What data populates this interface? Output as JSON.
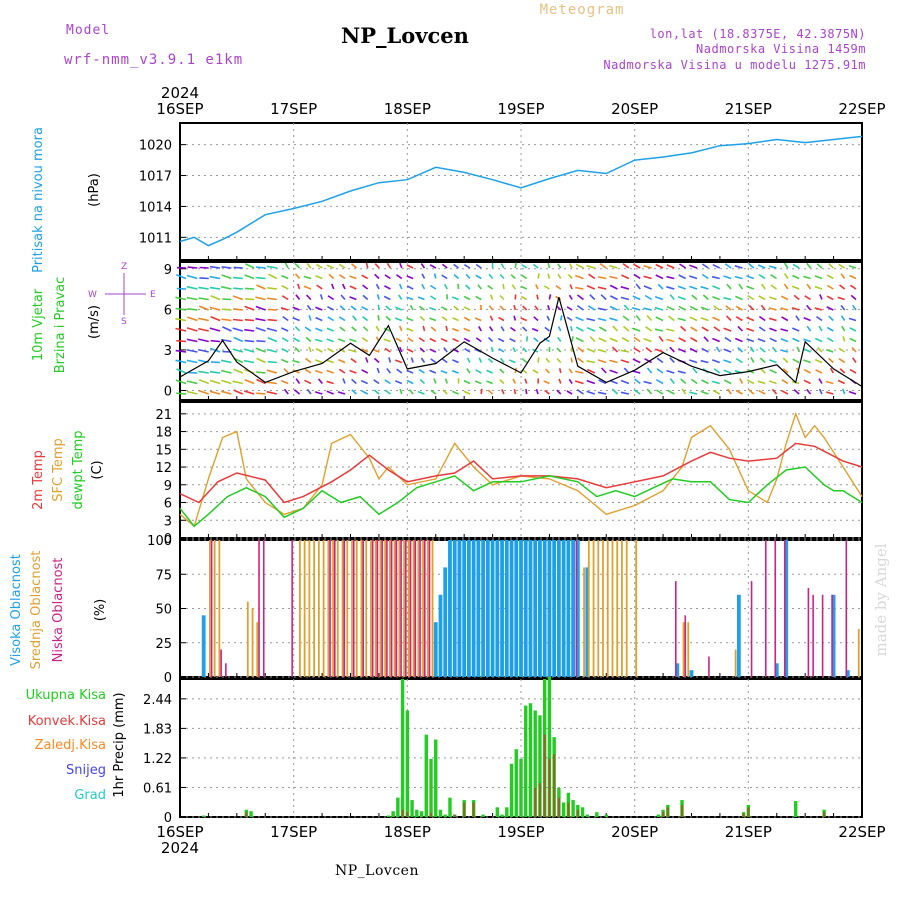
{
  "header": {
    "model_label": "Model",
    "model_name": "wrf-nmm_v3.9.1 e1km",
    "title": "NP_Lovcen",
    "meteogram": "Meteogram",
    "lonlat": "lon,lat (18.8375E, 42.3875N)",
    "elevation": "Nadmorska Visina 1459m",
    "model_elevation": "Nadmorska Visina u modelu 1275.91m",
    "footer": "NP_Lovcen",
    "credit": "made by Angel"
  },
  "time_axis": {
    "year": "2024",
    "days": [
      "16SEP",
      "17SEP",
      "18SEP",
      "19SEP",
      "20SEP",
      "21SEP",
      "22SEP"
    ]
  },
  "colors": {
    "pressure": "#1ea0e8",
    "temp2m": "#e83a3a",
    "sfc": "#e0a030",
    "dewpt": "#22cc22",
    "high_cloud": "#1ea0e8",
    "mid_cloud": "#e0a030",
    "low_cloud": "#cc2288",
    "total_precip": "#22cc22",
    "conv_precip": "#e83a3a",
    "ice_precip": "#ff8822",
    "snow": "#4444ee",
    "grad": "#22cccc",
    "purple": "#aa44cc"
  },
  "chart_data": [
    {
      "type": "line",
      "panel": "pressure",
      "ylabel": [
        "Pritisak na nivou mora",
        "(hPa)"
      ],
      "yticks": [
        1011,
        1014,
        1017,
        1020
      ],
      "ylim": [
        1008.8,
        1022.1
      ],
      "xlim": [
        0,
        144
      ],
      "grid": true,
      "series": [
        {
          "x": [
            0,
            3,
            6,
            9,
            12,
            18,
            24,
            30,
            36,
            42,
            48,
            54,
            60,
            66,
            72,
            78,
            84,
            90,
            96,
            102,
            108,
            114,
            120,
            126,
            132,
            138,
            144
          ],
          "y": [
            1010.6,
            1011.0,
            1010.2,
            1010.8,
            1011.5,
            1013.2,
            1013.8,
            1014.5,
            1015.5,
            1016.3,
            1016.6,
            1017.8,
            1017.3,
            1016.6,
            1015.8,
            1016.7,
            1017.5,
            1017.2,
            1018.5,
            1018.8,
            1019.2,
            1019.9,
            1020.1,
            1020.5,
            1020.2,
            1020.5,
            1020.8
          ]
        }
      ]
    },
    {
      "type": "line",
      "panel": "wind",
      "ylabel": [
        "10m Vjetar",
        "Brzina i Pravac",
        "(m/s)"
      ],
      "direction_key": [
        "Z",
        "W",
        "E",
        "S"
      ],
      "yticks": [
        0,
        3,
        6,
        9
      ],
      "ylim": [
        -0.7,
        9.5
      ],
      "xlim": [
        0,
        144
      ],
      "grid": true,
      "series": [
        {
          "name": "speed",
          "x": [
            0,
            6,
            9,
            12,
            18,
            24,
            30,
            36,
            40,
            44,
            48,
            54,
            60,
            66,
            72,
            76,
            78,
            80,
            84,
            90,
            96,
            102,
            108,
            114,
            120,
            126,
            130,
            132,
            138,
            144
          ],
          "y": [
            1.0,
            2.2,
            3.7,
            2.1,
            0.6,
            1.4,
            2.0,
            3.5,
            2.6,
            4.8,
            1.6,
            2.0,
            3.6,
            2.4,
            1.3,
            3.5,
            4.0,
            6.9,
            1.8,
            0.6,
            1.5,
            2.8,
            1.8,
            1.1,
            1.4,
            1.9,
            0.6,
            3.6,
            1.6,
            0.3
          ]
        }
      ]
    },
    {
      "type": "line",
      "panel": "temperature",
      "ylabel": [
        "2m Temp",
        "SFC Temp",
        "dewpt Temp",
        "(C)"
      ],
      "yticks": [
        0,
        3,
        6,
        9,
        12,
        15,
        18,
        21
      ],
      "ylim": [
        0,
        23
      ],
      "xlim": [
        0,
        144
      ],
      "grid": true,
      "series": [
        {
          "name": "2m Temp",
          "x": [
            0,
            4,
            8,
            12,
            18,
            22,
            26,
            32,
            36,
            40,
            44,
            48,
            54,
            58,
            62,
            66,
            72,
            78,
            84,
            90,
            96,
            102,
            108,
            112,
            116,
            120,
            126,
            130,
            134,
            140,
            144
          ],
          "y": [
            7.5,
            6.0,
            9.5,
            11.0,
            9.8,
            6.0,
            7.0,
            9.5,
            11.5,
            14.0,
            11.5,
            9.5,
            10.5,
            11.0,
            13.0,
            10.0,
            10.5,
            10.5,
            10.0,
            8.5,
            9.5,
            10.5,
            13.0,
            14.5,
            13.5,
            13.0,
            13.5,
            16.0,
            15.5,
            13.0,
            12.0
          ]
        },
        {
          "name": "SFC Temp",
          "x": [
            0,
            3,
            6,
            9,
            12,
            14,
            18,
            22,
            26,
            30,
            32,
            36,
            40,
            42,
            44,
            48,
            54,
            58,
            62,
            66,
            72,
            78,
            84,
            90,
            96,
            102,
            106,
            108,
            112,
            116,
            120,
            124,
            126,
            128,
            130,
            132,
            134,
            136,
            140,
            144
          ],
          "y": [
            4.0,
            2.0,
            10.0,
            17.0,
            18.0,
            10.0,
            6.0,
            4.0,
            5.0,
            9.0,
            16.0,
            17.5,
            13.5,
            10.0,
            12.0,
            9.0,
            10.0,
            16.0,
            12.0,
            9.0,
            10.5,
            10.0,
            8.0,
            4.0,
            5.5,
            8.0,
            12.0,
            17.0,
            19.0,
            15.0,
            8.0,
            6.0,
            10.0,
            16.0,
            21.0,
            17.0,
            19.0,
            17.0,
            12.0,
            7.0
          ]
        },
        {
          "name": "dewpt Temp",
          "x": [
            0,
            3,
            6,
            10,
            14,
            18,
            22,
            26,
            30,
            34,
            38,
            42,
            46,
            50,
            54,
            58,
            62,
            66,
            72,
            78,
            84,
            88,
            92,
            96,
            100,
            104,
            108,
            112,
            116,
            120,
            124,
            128,
            132,
            136,
            138,
            140,
            144
          ],
          "y": [
            5.0,
            2.0,
            4.0,
            7.0,
            8.5,
            7.0,
            3.5,
            5.0,
            8.0,
            6.0,
            7.0,
            4.0,
            6.0,
            8.5,
            9.5,
            10.5,
            8.0,
            9.5,
            9.5,
            10.5,
            9.5,
            7.0,
            8.0,
            7.0,
            8.5,
            10.0,
            9.5,
            9.5,
            6.5,
            6.0,
            9.0,
            11.5,
            12.0,
            9.0,
            8.0,
            8.0,
            6.0
          ]
        }
      ]
    },
    {
      "type": "bar",
      "panel": "clouds",
      "ylabel": [
        "Visoka Oblacnost",
        "Srednja Oblacnost",
        "Niska Oblacnost",
        "(%)"
      ],
      "yticks": [
        0,
        25,
        50,
        75,
        100
      ],
      "ylim": [
        0,
        100
      ],
      "xlim": [
        0,
        144
      ],
      "grid": true,
      "series": [
        {
          "name": "Visoka Oblacnost",
          "x": [
            5,
            54,
            55,
            56,
            57,
            58,
            59,
            60,
            61,
            62,
            63,
            64,
            65,
            66,
            67,
            68,
            69,
            70,
            71,
            72,
            73,
            74,
            75,
            76,
            77,
            78,
            79,
            80,
            81,
            82,
            83,
            84,
            86,
            105,
            108,
            118,
            126,
            128,
            138,
            141
          ],
          "y": [
            45,
            40,
            60,
            80,
            100,
            100,
            100,
            100,
            100,
            100,
            100,
            100,
            100,
            100,
            100,
            100,
            100,
            100,
            100,
            100,
            100,
            100,
            100,
            100,
            100,
            100,
            100,
            100,
            100,
            100,
            100,
            100,
            80,
            10,
            5,
            60,
            10,
            100,
            60,
            5
          ]
        },
        {
          "name": "Srednja Oblacnost",
          "x": [
            6,
            7,
            8,
            14,
            15,
            16,
            25,
            26,
            27,
            28,
            29,
            30,
            31,
            32,
            33,
            34,
            35,
            36,
            37,
            38,
            39,
            40,
            41,
            42,
            43,
            44,
            45,
            46,
            47,
            48,
            49,
            50,
            51,
            52,
            53,
            85,
            86,
            87,
            88,
            89,
            90,
            91,
            92,
            93,
            94,
            96,
            106,
            107,
            117,
            143
          ],
          "y": [
            100,
            100,
            100,
            55,
            50,
            40,
            100,
            100,
            100,
            100,
            100,
            100,
            100,
            100,
            100,
            100,
            100,
            100,
            100,
            100,
            100,
            100,
            100,
            100,
            100,
            100,
            100,
            100,
            100,
            100,
            100,
            100,
            100,
            100,
            100,
            80,
            100,
            100,
            100,
            100,
            100,
            100,
            100,
            100,
            100,
            100,
            40,
            40,
            20,
            35
          ]
        },
        {
          "name": "Niska Oblacnost",
          "x": [
            7,
            9,
            10,
            17,
            18,
            24,
            32,
            33,
            35,
            37,
            39,
            41,
            42,
            43,
            44,
            45,
            46,
            47,
            48,
            49,
            50,
            51,
            52,
            53,
            84,
            105,
            107,
            112,
            121,
            124,
            126,
            128,
            133,
            134,
            136,
            138,
            141
          ],
          "y": [
            100,
            20,
            10,
            100,
            100,
            100,
            100,
            100,
            100,
            100,
            100,
            100,
            100,
            100,
            100,
            100,
            100,
            100,
            100,
            100,
            100,
            100,
            100,
            100,
            100,
            70,
            45,
            15,
            70,
            100,
            100,
            100,
            65,
            60,
            60,
            60,
            100
          ]
        }
      ]
    },
    {
      "type": "bar",
      "panel": "precip",
      "ylabel": [
        "1hr Precip (mm)"
      ],
      "legend": [
        "Ukupna Kisa",
        "Konvek.Kisa",
        "Zaledj.Kisa",
        "Snijeg",
        "Grad"
      ],
      "yticks": [
        0,
        0.61,
        1.22,
        1.83,
        2.44
      ],
      "ylim": [
        0,
        2.85
      ],
      "xlim": [
        0,
        144
      ],
      "grid": true,
      "series": [
        {
          "name": "Ukupna Kisa",
          "x": [
            5,
            14,
            15,
            44,
            45,
            46,
            47,
            48,
            49,
            50,
            51,
            52,
            53,
            54,
            55,
            56,
            57,
            58,
            60,
            62,
            64,
            67,
            68,
            69,
            70,
            71,
            72,
            73,
            74,
            75,
            76,
            77,
            78,
            79,
            80,
            81,
            82,
            83,
            84,
            85,
            86,
            88,
            90,
            101,
            102,
            103,
            106,
            119,
            120,
            130,
            136
          ],
          "y": [
            0.03,
            0.15,
            0.12,
            0.03,
            0.12,
            0.4,
            2.85,
            2.2,
            0.35,
            0.15,
            0.12,
            1.7,
            1.2,
            1.6,
            0.15,
            0.05,
            0.4,
            0.05,
            0.35,
            0.35,
            0.05,
            0.2,
            0.05,
            0.2,
            1.1,
            1.4,
            1.2,
            2.3,
            2.35,
            2.2,
            2.1,
            2.85,
            2.9,
            1.65,
            0.6,
            0.3,
            0.5,
            0.35,
            0.25,
            0.2,
            0.05,
            0.1,
            0.05,
            0.05,
            0.15,
            0.25,
            0.35,
            0.1,
            0.25,
            0.33,
            0.15
          ]
        },
        {
          "name": "Konvek.Kisa",
          "x": [
            14,
            47,
            48,
            53,
            58,
            60,
            62,
            75,
            76,
            77,
            78,
            79,
            80,
            82,
            84,
            102,
            103,
            106,
            119,
            120,
            136
          ],
          "y": [
            0.1,
            0.15,
            0.1,
            0.08,
            0.05,
            0.3,
            0.3,
            0.6,
            0.7,
            1.7,
            1.2,
            1.3,
            0.4,
            0.3,
            0.15,
            0.1,
            0.2,
            0.25,
            0.08,
            0.2,
            0.1
          ]
        },
        {
          "name": "Zaledj.Kisa",
          "x": [],
          "y": []
        },
        {
          "name": "Snijeg",
          "x": [],
          "y": []
        },
        {
          "name": "Grad",
          "x": [],
          "y": []
        }
      ]
    }
  ]
}
